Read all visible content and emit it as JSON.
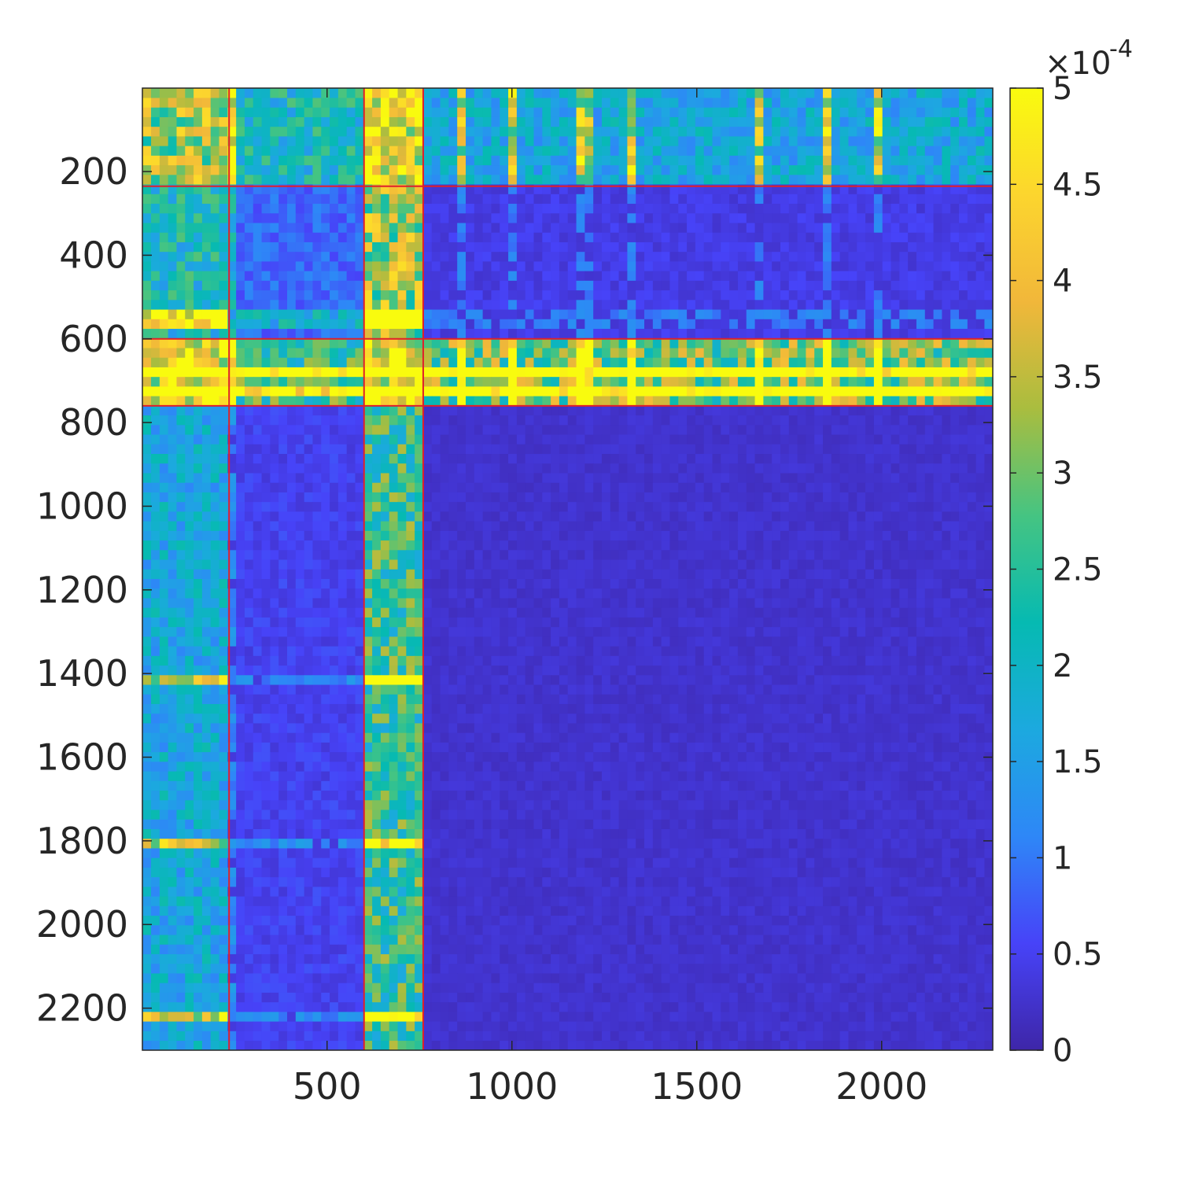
{
  "chart_data": {
    "type": "heatmap",
    "title": "",
    "xlabel": "",
    "ylabel": "",
    "matrix_size": 2300,
    "xlim": [
      1,
      2300
    ],
    "ylim": [
      1,
      2300
    ],
    "x_ticks": [
      500,
      1000,
      1500,
      2000
    ],
    "x_tick_labels": [
      "500",
      "1000",
      "1500",
      "2000"
    ],
    "y_ticks": [
      200,
      400,
      600,
      800,
      1000,
      1200,
      1400,
      1600,
      1800,
      2000,
      2200
    ],
    "y_tick_labels": [
      "200",
      "400",
      "600",
      "800",
      "1000",
      "1200",
      "1400",
      "1600",
      "1800",
      "2000",
      "2200"
    ],
    "colormap": "parula",
    "colormap_stops": [
      "#3e26a8",
      "#4743f8",
      "#2e87f7",
      "#1ca9df",
      "#06bab2",
      "#45c482",
      "#a9bd3f",
      "#f1b73a",
      "#fcd52e",
      "#f9fb0e"
    ],
    "clim": [
      0,
      0.0005
    ],
    "colorbar": {
      "ticks": [
        0,
        0.5,
        1,
        1.5,
        2,
        2.5,
        3,
        3.5,
        4,
        4.5,
        5
      ],
      "tick_labels": [
        "0",
        "0.5",
        "1",
        "1.5",
        "2",
        "2.5",
        "3",
        "3.5",
        "4",
        "4.5",
        "5"
      ],
      "multiplier_base": "×10",
      "multiplier_exponent": "-4",
      "location": "right"
    },
    "block_boundaries": [
      1,
      235,
      600,
      760,
      2300
    ],
    "block_mean_values_e4": [
      [
        4.0,
        2.5,
        4.8,
        2.0
      ],
      [
        2.5,
        1.0,
        4.0,
        0.5
      ],
      [
        4.7,
        3.0,
        5.0,
        3.5
      ],
      [
        2.0,
        0.6,
        3.0,
        0.3
      ]
    ],
    "highlight_lines": {
      "color": "#e0202a",
      "at": [
        235,
        600,
        760
      ]
    },
    "grid": false
  }
}
